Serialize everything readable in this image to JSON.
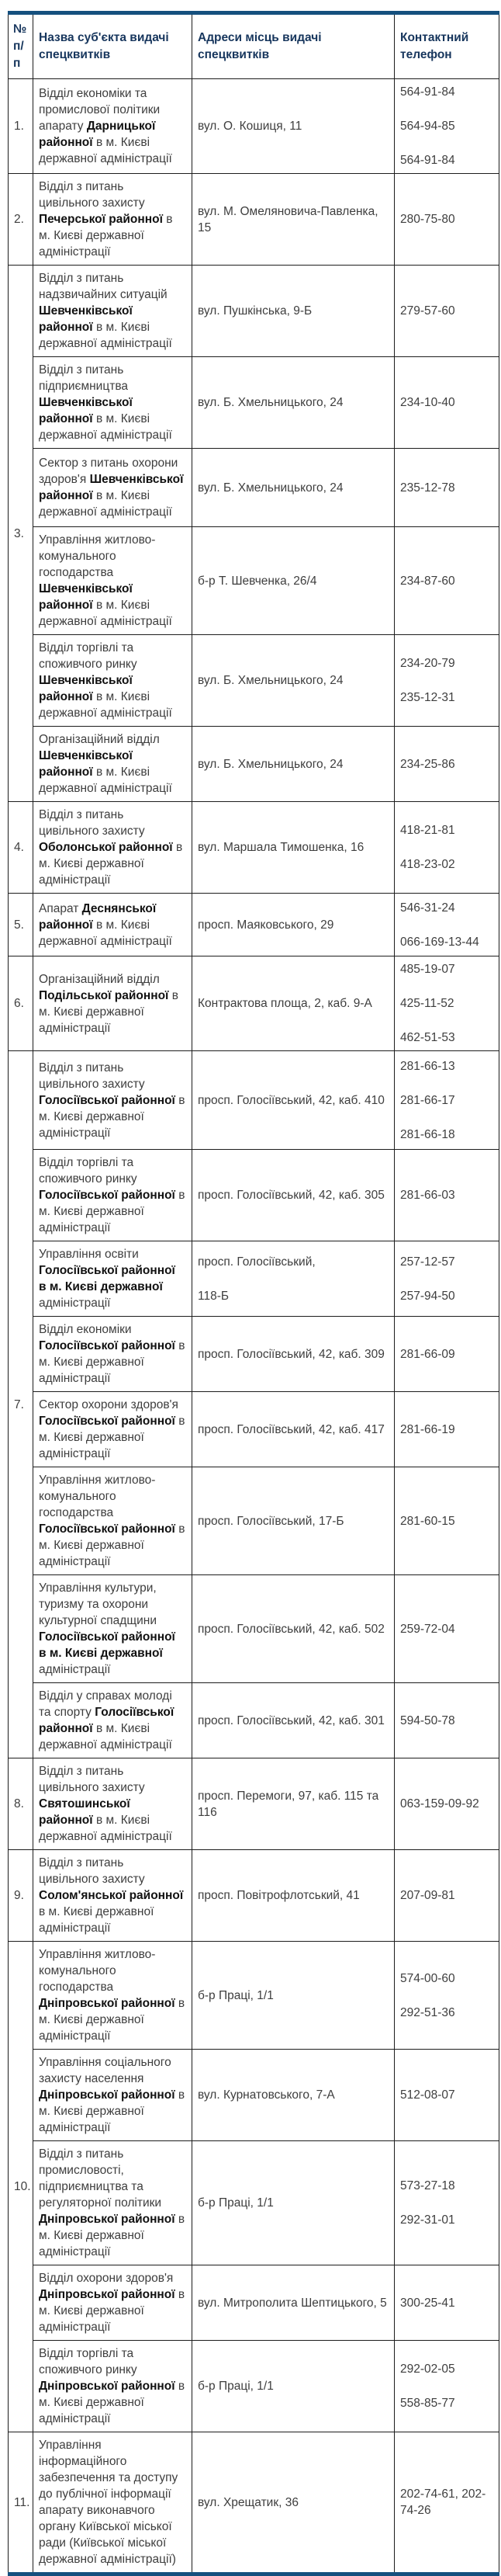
{
  "colors": {
    "table_accent_border": "#15507E",
    "header_text": "#17365D",
    "body_text": "#3E3E3E",
    "bold_text": "#111111",
    "cell_border": "#1d1d1d",
    "background": "#ffffff"
  },
  "table": {
    "headers": [
      "№ п/п",
      "Назва суб'єкта видачі спецквитків",
      "Адреси місць видачі спецквитків",
      "Контактний телефон"
    ],
    "groups": [
      {
        "num": "1.",
        "rows": [
          {
            "h": 120,
            "name": [
              {
                "t": "Відділ економіки та промислової політики апарату ",
                "b": false
              },
              {
                "t": "Дарницької районної",
                "b": true
              },
              {
                "t": " в м. Києві державної адміністрації",
                "b": false
              }
            ],
            "addr": [
              "вул. О. Кошиця, 11"
            ],
            "phones": [
              "564-91-84",
              "564-94-85",
              "564-91-84"
            ]
          }
        ]
      },
      {
        "num": "2.",
        "rows": [
          {
            "h": 85,
            "name": [
              {
                "t": "Відділ з питань цивільного захисту ",
                "b": false
              },
              {
                "t": "Печерської районної",
                "b": true
              },
              {
                "t": " в м. Києві державної адміністрації",
                "b": false
              }
            ],
            "addr": [
              "вул. М. Омеляновича-Павленка, 15"
            ],
            "phones": [
              "280-75-80"
            ]
          }
        ]
      },
      {
        "num": "3.",
        "rows": [
          {
            "h": 117,
            "name": [
              {
                "t": "Відділ з питань надзвичайних ситуацій ",
                "b": false
              },
              {
                "t": "Шевченківської районної",
                "b": true
              },
              {
                "t": " в м. Києві державної адміністрації",
                "b": false
              }
            ],
            "addr": [
              "вул. Пушкінська, 9-Б"
            ],
            "phones": [
              "279-57-60"
            ]
          },
          {
            "h": 64,
            "name": [
              {
                "t": "Відділ з питань підприємництва ",
                "b": false
              },
              {
                "t": "Шевченківської районної",
                "b": true
              },
              {
                "t": " в м. Києві державної адміністрації",
                "b": false
              }
            ],
            "addr": [
              "вул. Б. Хмельницького, 24"
            ],
            "phones": [
              "234-10-40"
            ]
          },
          {
            "h": 101,
            "name": [
              {
                "t": "Сектор з питань охорони здоров'я ",
                "b": false
              },
              {
                "t": "Шевченківської районної",
                "b": true
              },
              {
                "t": " в м. Києві державної адміністрації",
                "b": false
              }
            ],
            "addr": [
              "вул. Б. Хмельницького, 24"
            ],
            "phones": [
              "235-12-78"
            ]
          },
          {
            "h": 100,
            "name": [
              {
                "t": "Управління житлово-комунального господарства ",
                "b": false
              },
              {
                "t": "Шевченківської районної",
                "b": true
              },
              {
                "t": " в м. Києві державної адміністрації",
                "b": false
              }
            ],
            "addr": [
              "б-р Т. Шевченка, 26/4"
            ],
            "phones": [
              "234-87-60"
            ]
          },
          {
            "h": 102,
            "name": [
              {
                "t": "Відділ торгівлі та споживчого ринку ",
                "b": false
              },
              {
                "t": "Шевченківської районної",
                "b": true
              },
              {
                "t": " в м. Києві державної адміністрації",
                "b": false
              }
            ],
            "addr": [
              "вул. Б. Хмельницького, 24"
            ],
            "phones": [
              "234-20-79",
              "235-12-31"
            ]
          },
          {
            "h": 78,
            "name": [
              {
                "t": "Організаційний відділ ",
                "b": false
              },
              {
                "t": "Шевченківської районної",
                "b": true
              },
              {
                "t": " в м. Києві державної адміністрації",
                "b": false
              }
            ],
            "addr": [
              "вул. Б. Хмельницького, 24"
            ],
            "phones": [
              "234-25-86"
            ]
          }
        ]
      },
      {
        "num": "4.",
        "rows": [
          {
            "h": 84,
            "name": [
              {
                "t": "Відділ з питань цивільного захисту ",
                "b": false
              },
              {
                "t": "Оболонської районної",
                "b": true
              },
              {
                "t": " в м. Києві державної адміністрації",
                "b": false
              }
            ],
            "addr": [
              "вул. Маршала Тимошенка, 16"
            ],
            "phones": [
              "418-21-81",
              "418-23-02"
            ]
          }
        ]
      },
      {
        "num": "5.",
        "rows": [
          {
            "h": 81,
            "name": [
              {
                "t": "Апарат ",
                "b": false
              },
              {
                "t": "Деснянської районної",
                "b": true
              },
              {
                "t": " в м. Києві державної адміністрації",
                "b": false
              }
            ],
            "addr": [
              "просп. Маяковського, 29"
            ],
            "phones": [
              "546-31-24",
              "066-169-13-44"
            ]
          }
        ]
      },
      {
        "num": "6.",
        "rows": [
          {
            "h": 122,
            "name": [
              {
                "t": "Організаційний відділ ",
                "b": false
              },
              {
                "t": "Подільської районної",
                "b": true
              },
              {
                "t": " в м. Києві державної адміністрації",
                "b": false
              }
            ],
            "addr": [
              "Контрактова площа, 2, каб. 9-А"
            ],
            "phones": [
              "485-19-07",
              "425-11-52",
              "462-51-53"
            ]
          }
        ]
      },
      {
        "num": "7.",
        "rows": [
          {
            "h": 127,
            "name": [
              {
                "t": "Відділ з питань цивільного захисту ",
                "b": false
              },
              {
                "t": "Голосіївської районної",
                "b": true
              },
              {
                "t": " в м. Києві державної адміністрації",
                "b": false
              }
            ],
            "addr": [
              "просп. Голосіївський, 42, каб. 410"
            ],
            "phones": [
              "281-66-13",
              "281-66-17",
              "281-66-18"
            ]
          },
          {
            "h": 78,
            "name": [
              {
                "t": "Відділ торгівлі та споживчого ринку ",
                "b": false
              },
              {
                "t": "Голосіївської районної",
                "b": true
              },
              {
                "t": " в м. Києві державної адміністрації",
                "b": false
              }
            ],
            "addr": [
              "просп. Голосіївський, 42, каб. 305"
            ],
            "phones": [
              "281-66-03"
            ]
          },
          {
            "h": 83,
            "name": [
              {
                "t": "Управління освіти ",
                "b": false
              },
              {
                "t": "Голосіївської районної в м. Києві державної",
                "b": true
              },
              {
                "t": " адміністрації",
                "b": false
              }
            ],
            "addr": [
              "просп. Голосіївський,",
              "118-Б"
            ],
            "phones": [
              "257-12-57",
              "257-94-50"
            ]
          },
          {
            "h": 80,
            "name": [
              {
                "t": "Відділ економіки ",
                "b": false
              },
              {
                "t": "Голосіївської районної",
                "b": true
              },
              {
                "t": " в м. Києві державної адміністрації",
                "b": false
              }
            ],
            "addr": [
              "просп. Голосіївський, 42, каб. 309"
            ],
            "phones": [
              "281-66-09"
            ]
          },
          {
            "h": 80,
            "name": [
              {
                "t": "Сектор охорони здоров'я ",
                "b": false
              },
              {
                "t": "Голосіївської районної",
                "b": true
              },
              {
                "t": " в м. Києві державної адміністрації",
                "b": false
              }
            ],
            "addr": [
              "просп. Голосіївський, 42, каб. 417"
            ],
            "phones": [
              "281-66-19"
            ]
          },
          {
            "h": 100,
            "name": [
              {
                "t": "Управління житлово-комунального господарства ",
                "b": false
              },
              {
                "t": "Голосіївської районної",
                "b": true
              },
              {
                "t": " в м. Києві державної адміністрації",
                "b": false
              }
            ],
            "addr": [
              "просп. Голосіївський, 17-Б"
            ],
            "phones": [
              "281-60-15"
            ]
          },
          {
            "h": 122,
            "name": [
              {
                "t": "Управління культури, туризму та охорони культурної спадщини ",
                "b": false
              },
              {
                "t": "Голосіївської районної в м. Києві державної",
                "b": true
              },
              {
                "t": " адміністрації",
                "b": false
              }
            ],
            "addr": [
              "просп. Голосіївський, 42, каб. 502"
            ],
            "phones": [
              "259-72-04"
            ]
          },
          {
            "h": 80,
            "name": [
              {
                "t": "Відділ у справах молоді та спорту ",
                "b": false
              },
              {
                "t": "Голосіївської районної",
                "b": true
              },
              {
                "t": " в м. Києві державної адміністрації",
                "b": false
              }
            ],
            "addr": [
              "просп. Голосіївський, 42, каб. 301"
            ],
            "phones": [
              "594-50-78"
            ]
          }
        ]
      },
      {
        "num": "8.",
        "rows": [
          {
            "h": 102,
            "name": [
              {
                "t": "Відділ з питань цивільного захисту ",
                "b": false
              },
              {
                "t": "Святошинської районної",
                "b": true
              },
              {
                "t": " в м. Києві державної адміністрації",
                "b": false
              }
            ],
            "addr": [
              "просп. Перемоги, 97, каб. 115 та 116"
            ],
            "phones": [
              "063-159-09-92"
            ]
          }
        ]
      },
      {
        "num": "9.",
        "rows": [
          {
            "h": 103,
            "name": [
              {
                "t": "Відділ з питань цивільного захисту ",
                "b": false
              },
              {
                "t": "Солом'янської районної",
                "b": true
              },
              {
                "t": " в м. Києві державної адміністрації",
                "b": false
              }
            ],
            "addr": [
              "просп. Повітрофлотський, 41"
            ],
            "phones": [
              "207-09-81"
            ]
          }
        ]
      },
      {
        "num": "10.",
        "rows": [
          {
            "h": 98,
            "name": [
              {
                "t": "Управління житлово-комунального господарства ",
                "b": false
              },
              {
                "t": "Дніпровської районної",
                "b": true
              },
              {
                "t": " в м. Києві державної адміністрації",
                "b": false
              }
            ],
            "addr": [
              "б-р Праці, 1/1"
            ],
            "phones": [
              "574-00-60",
              "292-51-36"
            ]
          },
          {
            "h": 104,
            "name": [
              {
                "t": "Управління соціального захисту населення ",
                "b": false
              },
              {
                "t": "Дніпровської районної",
                "b": true
              },
              {
                "t": " в м. Києві державної адміністрації",
                "b": false
              }
            ],
            "addr": [
              "вул. Курнатовського, 7-А"
            ],
            "phones": [
              "512-08-07"
            ]
          },
          {
            "h": 120,
            "name": [
              {
                "t": "Відділ з питань промисловості, підприємництва та регуляторної політики ",
                "b": false
              },
              {
                "t": "Дніпровської районної",
                "b": true
              },
              {
                "t": " в м. Києві державної адміністрації",
                "b": false
              }
            ],
            "addr": [
              "б-р Праці, 1/1"
            ],
            "phones": [
              "573-27-18",
              "292-31-01"
            ]
          },
          {
            "h": 81,
            "name": [
              {
                "t": "Відділ охорони здоров'я ",
                "b": false
              },
              {
                "t": "Дніпровської районної",
                "b": true
              },
              {
                "t": " в м. Києві державної адміністрації",
                "b": false
              }
            ],
            "addr": [
              "вул. Митрополита Шептицького, 5"
            ],
            "phones": [
              "300-25-41"
            ]
          },
          {
            "h": 85,
            "name": [
              {
                "t": "Відділ торгівлі та споживчого ринку ",
                "b": false
              },
              {
                "t": "Дніпровської районної",
                "b": true
              },
              {
                "t": " в м. Києві державної адміністрації",
                "b": false
              }
            ],
            "addr": [
              "б-р Праці, 1/1"
            ],
            "phones": [
              "292-02-05",
              "558-85-77"
            ]
          }
        ]
      },
      {
        "num": "11.",
        "rows": [
          {
            "h": 140,
            "name": [
              {
                "t": "Управління інформаційного забезпечення та доступу до публічної інформації апарату виконавчого органу Київської міської ради (Київської міської державної адміністрації)",
                "b": false
              }
            ],
            "addr": [
              "вул. Хрещатик, 36"
            ],
            "phones": [
              "202-74-61, 202-74-26"
            ]
          }
        ]
      }
    ]
  }
}
